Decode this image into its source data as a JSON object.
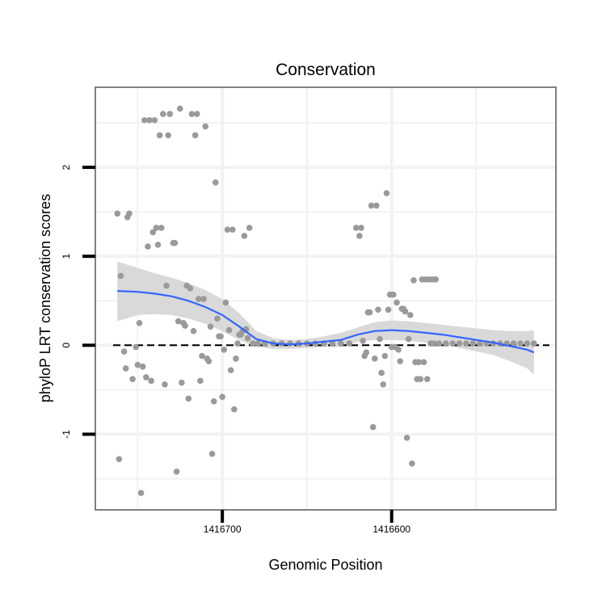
{
  "chart_data": {
    "type": "scatter",
    "title": "Conservation",
    "xlabel": "Genomic Position",
    "ylabel": "phyloP LRT conservation scores",
    "x_reversed": true,
    "xlim": [
      1416775,
      1416503
    ],
    "ylim": [
      -1.85,
      2.9
    ],
    "x_ticks": [
      {
        "value": 1416700,
        "label": "1416700"
      },
      {
        "value": 1416600,
        "label": "1416600"
      }
    ],
    "y_ticks": [
      {
        "value": -1,
        "label": "-1"
      },
      {
        "value": 0,
        "label": "0"
      },
      {
        "value": 1,
        "label": "1"
      },
      {
        "value": 2,
        "label": "2"
      }
    ],
    "grid": true,
    "reference_line": {
      "y": 0,
      "style": "dashed"
    },
    "colors": {
      "points": "#9a9a9a",
      "smooth": "#3366ff",
      "band": "#d9d9d9",
      "grid": "#f2f2f2",
      "border": "#808080",
      "reference": "#000000"
    },
    "series": [
      {
        "kind": "points",
        "points": [
          [
            1416762,
            1.48
          ],
          [
            1416761,
            -1.28
          ],
          [
            1416760,
            0.78
          ],
          [
            1416758,
            -0.07
          ],
          [
            1416757,
            -0.26
          ],
          [
            1416756,
            1.44
          ],
          [
            1416755,
            1.48
          ],
          [
            1416753,
            -0.38
          ],
          [
            1416751,
            -0.02
          ],
          [
            1416750,
            -0.22
          ],
          [
            1416749,
            0.25
          ],
          [
            1416748,
            -1.66
          ],
          [
            1416747,
            -0.24
          ],
          [
            1416746,
            2.53
          ],
          [
            1416745,
            -0.36
          ],
          [
            1416744,
            1.11
          ],
          [
            1416743,
            2.53
          ],
          [
            1416742,
            -0.4
          ],
          [
            1416741,
            1.27
          ],
          [
            1416740,
            2.53
          ],
          [
            1416739,
            1.32
          ],
          [
            1416738,
            1.13
          ],
          [
            1416737,
            2.36
          ],
          [
            1416736,
            1.32
          ],
          [
            1416735,
            2.6
          ],
          [
            1416734,
            -0.44
          ],
          [
            1416733,
            0.67
          ],
          [
            1416732,
            2.36
          ],
          [
            1416731,
            2.6
          ],
          [
            1416729,
            1.15
          ],
          [
            1416728,
            1.15
          ],
          [
            1416727,
            -1.42
          ],
          [
            1416726,
            0.27
          ],
          [
            1416725,
            2.66
          ],
          [
            1416724,
            -0.42
          ],
          [
            1416723,
            0.25
          ],
          [
            1416722,
            0.22
          ],
          [
            1416721,
            0.67
          ],
          [
            1416720,
            -0.6
          ],
          [
            1416719,
            0.64
          ],
          [
            1416718,
            2.6
          ],
          [
            1416717,
            0.16
          ],
          [
            1416716,
            2.36
          ],
          [
            1416715,
            2.6
          ],
          [
            1416714,
            0.52
          ],
          [
            1416713,
            -0.4
          ],
          [
            1416712,
            -0.12
          ],
          [
            1416711,
            0.52
          ],
          [
            1416710,
            2.46
          ],
          [
            1416709,
            -0.15
          ],
          [
            1416708,
            -0.18
          ],
          [
            1416707,
            0.21
          ],
          [
            1416706,
            -1.22
          ],
          [
            1416705,
            -0.63
          ],
          [
            1416704,
            1.83
          ],
          [
            1416703,
            0.3
          ],
          [
            1416702,
            0.1
          ],
          [
            1416701,
            0.1
          ],
          [
            1416700,
            -0.58
          ],
          [
            1416699,
            -0.05
          ],
          [
            1416698,
            0.48
          ],
          [
            1416697,
            1.3
          ],
          [
            1416696,
            0.17
          ],
          [
            1416695,
            -0.28
          ],
          [
            1416694,
            1.3
          ],
          [
            1416693,
            -0.72
          ],
          [
            1416692,
            -0.15
          ],
          [
            1416691,
            0.02
          ],
          [
            1416690,
            0.12
          ],
          [
            1416689,
            0.12
          ],
          [
            1416688,
            0.16
          ],
          [
            1416687,
            1.23
          ],
          [
            1416686,
            0.18
          ],
          [
            1416685,
            0.08
          ],
          [
            1416684,
            1.32
          ],
          [
            1416682,
            0.02
          ],
          [
            1416679,
            0.02
          ],
          [
            1416675,
            0.02
          ],
          [
            1416670,
            0.02
          ],
          [
            1416665,
            0.02
          ],
          [
            1416660,
            0.02
          ],
          [
            1416655,
            0.02
          ],
          [
            1416650,
            0.02
          ],
          [
            1416645,
            0.02
          ],
          [
            1416640,
            0.02
          ],
          [
            1416635,
            0.02
          ],
          [
            1416630,
            0.02
          ],
          [
            1416625,
            0.02
          ],
          [
            1416621,
            1.32
          ],
          [
            1416619,
            1.23
          ],
          [
            1416618,
            1.32
          ],
          [
            1416617,
            0.05
          ],
          [
            1416616,
            -0.12
          ],
          [
            1416615,
            -0.08
          ],
          [
            1416614,
            0.37
          ],
          [
            1416613,
            0.37
          ],
          [
            1416612,
            1.57
          ],
          [
            1416611,
            -0.92
          ],
          [
            1416610,
            -0.15
          ],
          [
            1416609,
            1.57
          ],
          [
            1416608,
            0.4
          ],
          [
            1416607,
            0.07
          ],
          [
            1416606,
            -0.31
          ],
          [
            1416605,
            -0.44
          ],
          [
            1416604,
            -0.12
          ],
          [
            1416603,
            1.71
          ],
          [
            1416602,
            0.4
          ],
          [
            1416601,
            0.57
          ],
          [
            1416600,
            -0.02
          ],
          [
            1416599,
            0.57
          ],
          [
            1416598,
            -0.02
          ],
          [
            1416597,
            0.48
          ],
          [
            1416596,
            -0.05
          ],
          [
            1416595,
            -0.18
          ],
          [
            1416594,
            0.41
          ],
          [
            1416593,
            0.41
          ],
          [
            1416592,
            0.38
          ],
          [
            1416591,
            -1.04
          ],
          [
            1416590,
            0.07
          ],
          [
            1416589,
            0.34
          ],
          [
            1416588,
            -1.33
          ],
          [
            1416587,
            0.73
          ],
          [
            1416586,
            -0.19
          ],
          [
            1416585,
            -0.38
          ],
          [
            1416584,
            -0.19
          ],
          [
            1416583,
            -0.38
          ],
          [
            1416582,
            0.74
          ],
          [
            1416581,
            -0.19
          ],
          [
            1416580,
            0.74
          ],
          [
            1416579,
            -0.38
          ],
          [
            1416578,
            0.74
          ],
          [
            1416577,
            0.02
          ],
          [
            1416576,
            0.74
          ],
          [
            1416575,
            0.02
          ],
          [
            1416574,
            0.74
          ],
          [
            1416572,
            0.02
          ],
          [
            1416568,
            0.02
          ],
          [
            1416564,
            0.02
          ],
          [
            1416560,
            0.02
          ],
          [
            1416556,
            0.02
          ],
          [
            1416552,
            0.02
          ],
          [
            1416548,
            0.02
          ],
          [
            1416544,
            0.02
          ],
          [
            1416540,
            0.02
          ],
          [
            1416536,
            0.02
          ],
          [
            1416532,
            0.02
          ],
          [
            1416528,
            0.02
          ],
          [
            1416524,
            0.02
          ],
          [
            1416520,
            0.02
          ],
          [
            1416516,
            0.02
          ]
        ]
      },
      {
        "kind": "smooth",
        "points": [
          [
            1416762,
            0.61
          ],
          [
            1416750,
            0.6
          ],
          [
            1416740,
            0.58
          ],
          [
            1416730,
            0.55
          ],
          [
            1416720,
            0.5
          ],
          [
            1416710,
            0.43
          ],
          [
            1416700,
            0.34
          ],
          [
            1416690,
            0.21
          ],
          [
            1416680,
            0.07
          ],
          [
            1416670,
            0.02
          ],
          [
            1416660,
            0.01
          ],
          [
            1416650,
            0.02
          ],
          [
            1416640,
            0.04
          ],
          [
            1416630,
            0.06
          ],
          [
            1416620,
            0.12
          ],
          [
            1416610,
            0.16
          ],
          [
            1416600,
            0.17
          ],
          [
            1416590,
            0.16
          ],
          [
            1416580,
            0.14
          ],
          [
            1416570,
            0.12
          ],
          [
            1416560,
            0.09
          ],
          [
            1416550,
            0.06
          ],
          [
            1416540,
            0.03
          ],
          [
            1416530,
            -0.01
          ],
          [
            1416520,
            -0.05
          ],
          [
            1416516,
            -0.08
          ]
        ],
        "upper": [
          0.94,
          0.87,
          0.81,
          0.76,
          0.7,
          0.62,
          0.52,
          0.36,
          0.16,
          0.08,
          0.06,
          0.07,
          0.1,
          0.14,
          0.2,
          0.26,
          0.28,
          0.27,
          0.25,
          0.23,
          0.21,
          0.19,
          0.17,
          0.16,
          0.16,
          0.17
        ],
        "lower": [
          0.27,
          0.34,
          0.35,
          0.34,
          0.3,
          0.24,
          0.16,
          0.06,
          -0.02,
          -0.04,
          -0.04,
          -0.03,
          -0.02,
          -0.02,
          0.04,
          0.06,
          0.06,
          0.05,
          0.03,
          0.01,
          -0.03,
          -0.07,
          -0.11,
          -0.18,
          -0.26,
          -0.33
        ]
      }
    ]
  }
}
